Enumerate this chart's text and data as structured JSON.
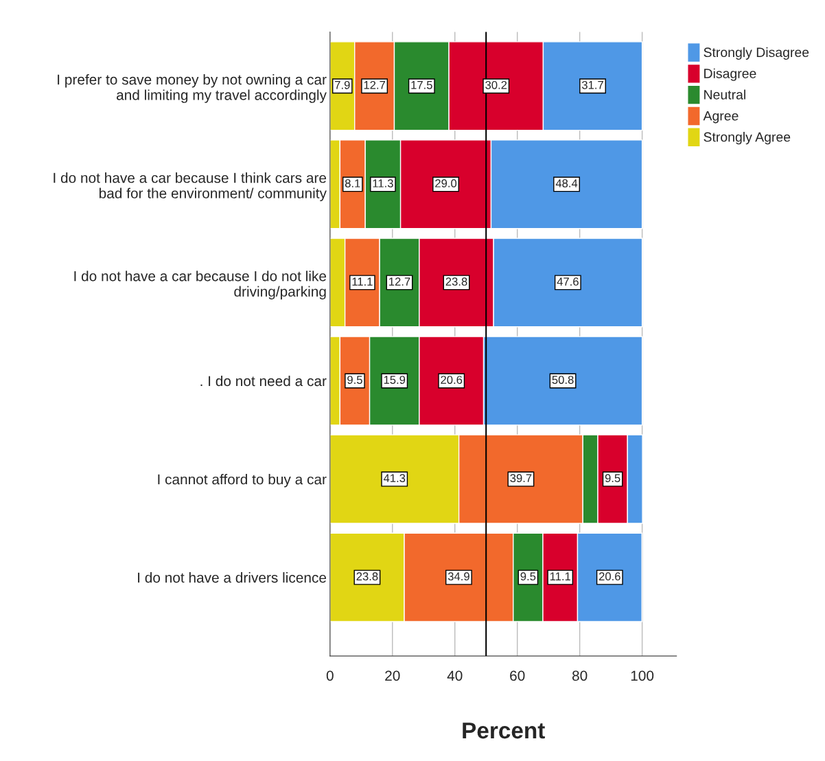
{
  "chart_data": {
    "type": "bar",
    "orientation": "horizontal",
    "stacked": true,
    "xlabel": "Percent",
    "categories": [
      "I prefer to save money by not owning a car\nand limiting my travel accordingly",
      "I do not have a car because I think cars are\nbad for the environment/ community",
      "I do not have a car because I do not like\ndriving/parking",
      ". I do not need a car",
      "I cannot afford to buy a car",
      "I do not have a drivers licence"
    ],
    "series": [
      {
        "name": "Strongly Agree",
        "color": "#e1d614",
        "values": [
          7.9,
          3.2,
          4.8,
          3.2,
          41.3,
          23.8
        ],
        "value_labels": [
          "7.9",
          null,
          null,
          null,
          "41.3",
          "23.8"
        ]
      },
      {
        "name": "Agree",
        "color": "#f2692c",
        "values": [
          12.7,
          8.1,
          11.1,
          9.5,
          39.7,
          34.9
        ],
        "value_labels": [
          "12.7",
          "8.1",
          "11.1",
          "9.5",
          "39.7",
          "34.9"
        ]
      },
      {
        "name": "Neutral",
        "color": "#2a8a2e",
        "values": [
          17.5,
          11.3,
          12.7,
          15.9,
          4.8,
          9.5
        ],
        "value_labels": [
          "17.5",
          "11.3",
          "12.7",
          "15.9",
          null,
          "9.5"
        ]
      },
      {
        "name": "Disagree",
        "color": "#d8002c",
        "values": [
          30.2,
          29.0,
          23.8,
          20.6,
          9.5,
          11.1
        ],
        "value_labels": [
          "30.2",
          "29.0",
          "23.8",
          "20.6",
          "9.5",
          "11.1"
        ]
      },
      {
        "name": "Strongly Disagree",
        "color": "#4f98e6",
        "values": [
          31.7,
          48.4,
          47.6,
          50.8,
          4.8,
          20.6
        ],
        "value_labels": [
          "31.7",
          "48.4",
          "47.6",
          "50.8",
          null,
          "20.6"
        ]
      }
    ],
    "xlim": [
      0,
      111
    ],
    "xticks": [
      0,
      20,
      40,
      60,
      80,
      100
    ],
    "grid": "x",
    "legend": "top right",
    "ref_lines": [
      {
        "axis": "x",
        "value": 50,
        "color": "#000000"
      }
    ]
  }
}
